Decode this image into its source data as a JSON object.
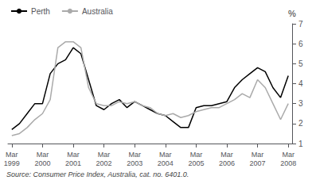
{
  "chart_data": {
    "type": "line",
    "ylabel": "%",
    "annotations": [
      "Source: Consumer Price Index, Australia, cat. no. 6401.0."
    ],
    "categories": [
      "Mar\n1999",
      null,
      null,
      null,
      "Mar\n2000",
      null,
      null,
      null,
      "Mar\n2001",
      null,
      null,
      null,
      "Mar\n2002",
      null,
      null,
      null,
      "Mar\n2003",
      null,
      null,
      null,
      "Mar\n2004",
      null,
      null,
      null,
      "Mar\n2005",
      null,
      null,
      null,
      "Mar\n2006",
      null,
      null,
      null,
      "Mar\n2007",
      null,
      null,
      null,
      "Mar\n2008"
    ],
    "series": [
      {
        "name": "Perth",
        "color": "#000000",
        "values": [
          1.7,
          2.0,
          2.5,
          3.0,
          3.0,
          4.5,
          5.0,
          5.2,
          5.8,
          5.5,
          4.2,
          2.9,
          2.7,
          3.0,
          3.2,
          2.8,
          3.1,
          2.9,
          2.7,
          2.5,
          2.4,
          2.1,
          1.8,
          1.8,
          2.8,
          2.9,
          2.9,
          3.0,
          3.1,
          3.8,
          4.2,
          4.5,
          4.8,
          4.6,
          3.8,
          3.3,
          4.4
        ]
      },
      {
        "name": "Australia",
        "color": "#aaaaaa",
        "values": [
          1.4,
          1.5,
          1.8,
          2.2,
          2.5,
          3.2,
          5.8,
          6.1,
          6.1,
          5.8,
          3.8,
          3.0,
          2.9,
          2.9,
          3.1,
          3.0,
          3.1,
          2.9,
          2.8,
          2.5,
          2.4,
          2.5,
          2.3,
          2.4,
          2.6,
          2.7,
          2.8,
          2.8,
          3.0,
          3.2,
          3.5,
          3.3,
          4.2,
          3.8,
          3.0,
          2.2,
          3.0
        ]
      }
    ],
    "ylim": [
      1,
      7
    ],
    "yticks": [
      1,
      2,
      3,
      4,
      5,
      6,
      7
    ],
    "grid": false,
    "legend": "upper left"
  }
}
